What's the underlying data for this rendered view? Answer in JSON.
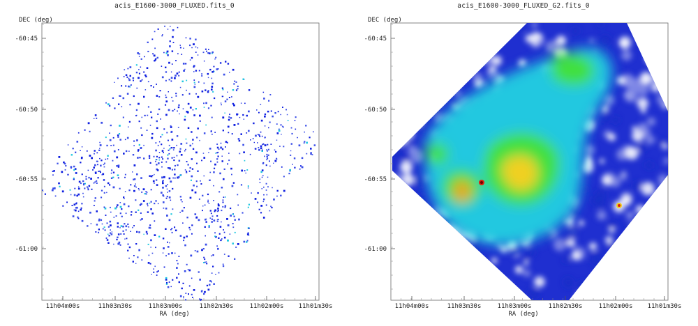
{
  "panels": [
    {
      "title": "acis_E1600-3000_FLUXED.fits_0",
      "xlabel": "RA (deg)",
      "ylabel": "DEC (deg)",
      "colormap": "sparse-blue",
      "x_ticks": [
        "11h04m00s",
        "11h03m30s",
        "11h03m00s",
        "11h02m30s",
        "11h02m00s",
        "11h01m30s"
      ],
      "y_ticks": [
        "-60:45",
        "-60:50",
        "-60:55",
        "-61:00"
      ]
    },
    {
      "title": "acis_E1600-3000_FLUXED_G2.fits_0",
      "xlabel": "RA (deg)",
      "ylabel": "DEC (deg)",
      "colormap": "smoothed-rainbow",
      "x_ticks": [
        "11h04m00s",
        "11h03m30s",
        "11h03m00s",
        "11h02m30s",
        "11h02m00s",
        "11h01m30s"
      ],
      "y_ticks": [
        "-60:45",
        "-60:50",
        "-60:55",
        "-61:00"
      ]
    }
  ],
  "colors": {
    "low": "#1f2fd0",
    "mid": "#22c8e0",
    "green": "#40e040",
    "high": "#f0e020",
    "peak": "#e02010"
  }
}
